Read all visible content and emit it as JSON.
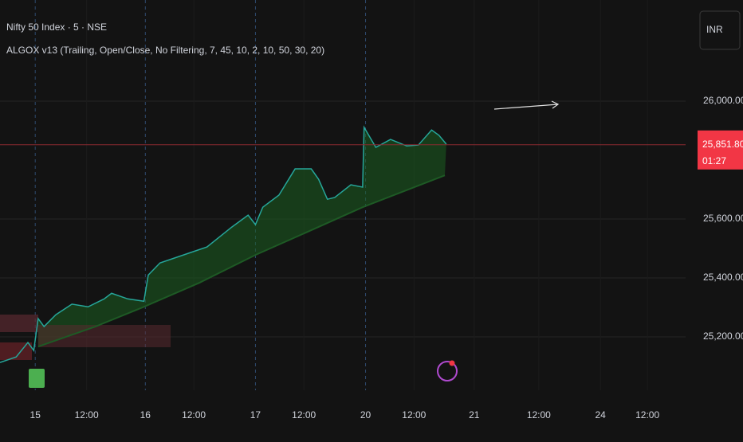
{
  "header": {
    "title": "Nifty 50 Index · 5 · NSE",
    "indicator": "ALGOX v13 (Trailing, Open/Close, No Filtering, 7, 45, 10, 2, 10, 50, 30, 20)",
    "currency": "INR"
  },
  "chart_data": {
    "type": "line",
    "xlim": [
      -24,
      443
    ],
    "ylim": [
      25019,
      26343
    ],
    "xticks": [
      {
        "value": 0,
        "label": "15"
      },
      {
        "value": 35,
        "label": "12:00"
      },
      {
        "value": 75,
        "label": "16"
      },
      {
        "value": 108,
        "label": "12:00"
      },
      {
        "value": 150,
        "label": "17"
      },
      {
        "value": 183,
        "label": "12:00"
      },
      {
        "value": 225,
        "label": "20"
      },
      {
        "value": 258,
        "label": "12:00"
      },
      {
        "value": 299,
        "label": "21"
      },
      {
        "value": 343,
        "label": "12:00"
      },
      {
        "value": 385,
        "label": "24"
      },
      {
        "value": 417,
        "label": "12:00"
      }
    ],
    "yticks": [
      {
        "value": 25200,
        "label": "25,200.00"
      },
      {
        "value": 25400,
        "label": "25,400.00"
      },
      {
        "value": 25600,
        "label": "25,600.00"
      },
      {
        "value": 26000,
        "label": "26,000.00"
      }
    ],
    "grid": true,
    "series": [
      {
        "color": "#26a69a",
        "x": [
          -24,
          -13,
          -5,
          -1,
          2,
          6,
          14,
          25,
          36,
          47,
          52,
          63,
          74,
          77,
          85,
          101,
          117,
          134,
          145,
          150,
          155,
          166,
          177,
          188,
          193,
          199,
          204,
          215,
          223,
          224,
          232,
          242,
          253,
          261,
          270,
          275,
          280
        ],
        "values": [
          25113,
          25132,
          25181,
          25154,
          25262,
          25235,
          25275,
          25311,
          25302,
          25329,
          25348,
          25329,
          25321,
          25410,
          25451,
          25478,
          25505,
          25573,
          25613,
          25581,
          25640,
          25681,
          25770,
          25770,
          25735,
          25667,
          25673,
          25716,
          25708,
          25911,
          25843,
          25870,
          25848,
          25851,
          25902,
          25884,
          25854
        ]
      },
      {
        "color": "#1e5a25",
        "x": [
          2,
          41,
          74,
          112,
          150,
          193,
          223,
          279
        ],
        "values": [
          25167,
          25235,
          25302,
          25384,
          25478,
          25573,
          25640,
          25748
        ]
      }
    ],
    "last_price": {
      "value": 25851.8,
      "label": "25,851.80"
    },
    "countdown": "01:27"
  }
}
